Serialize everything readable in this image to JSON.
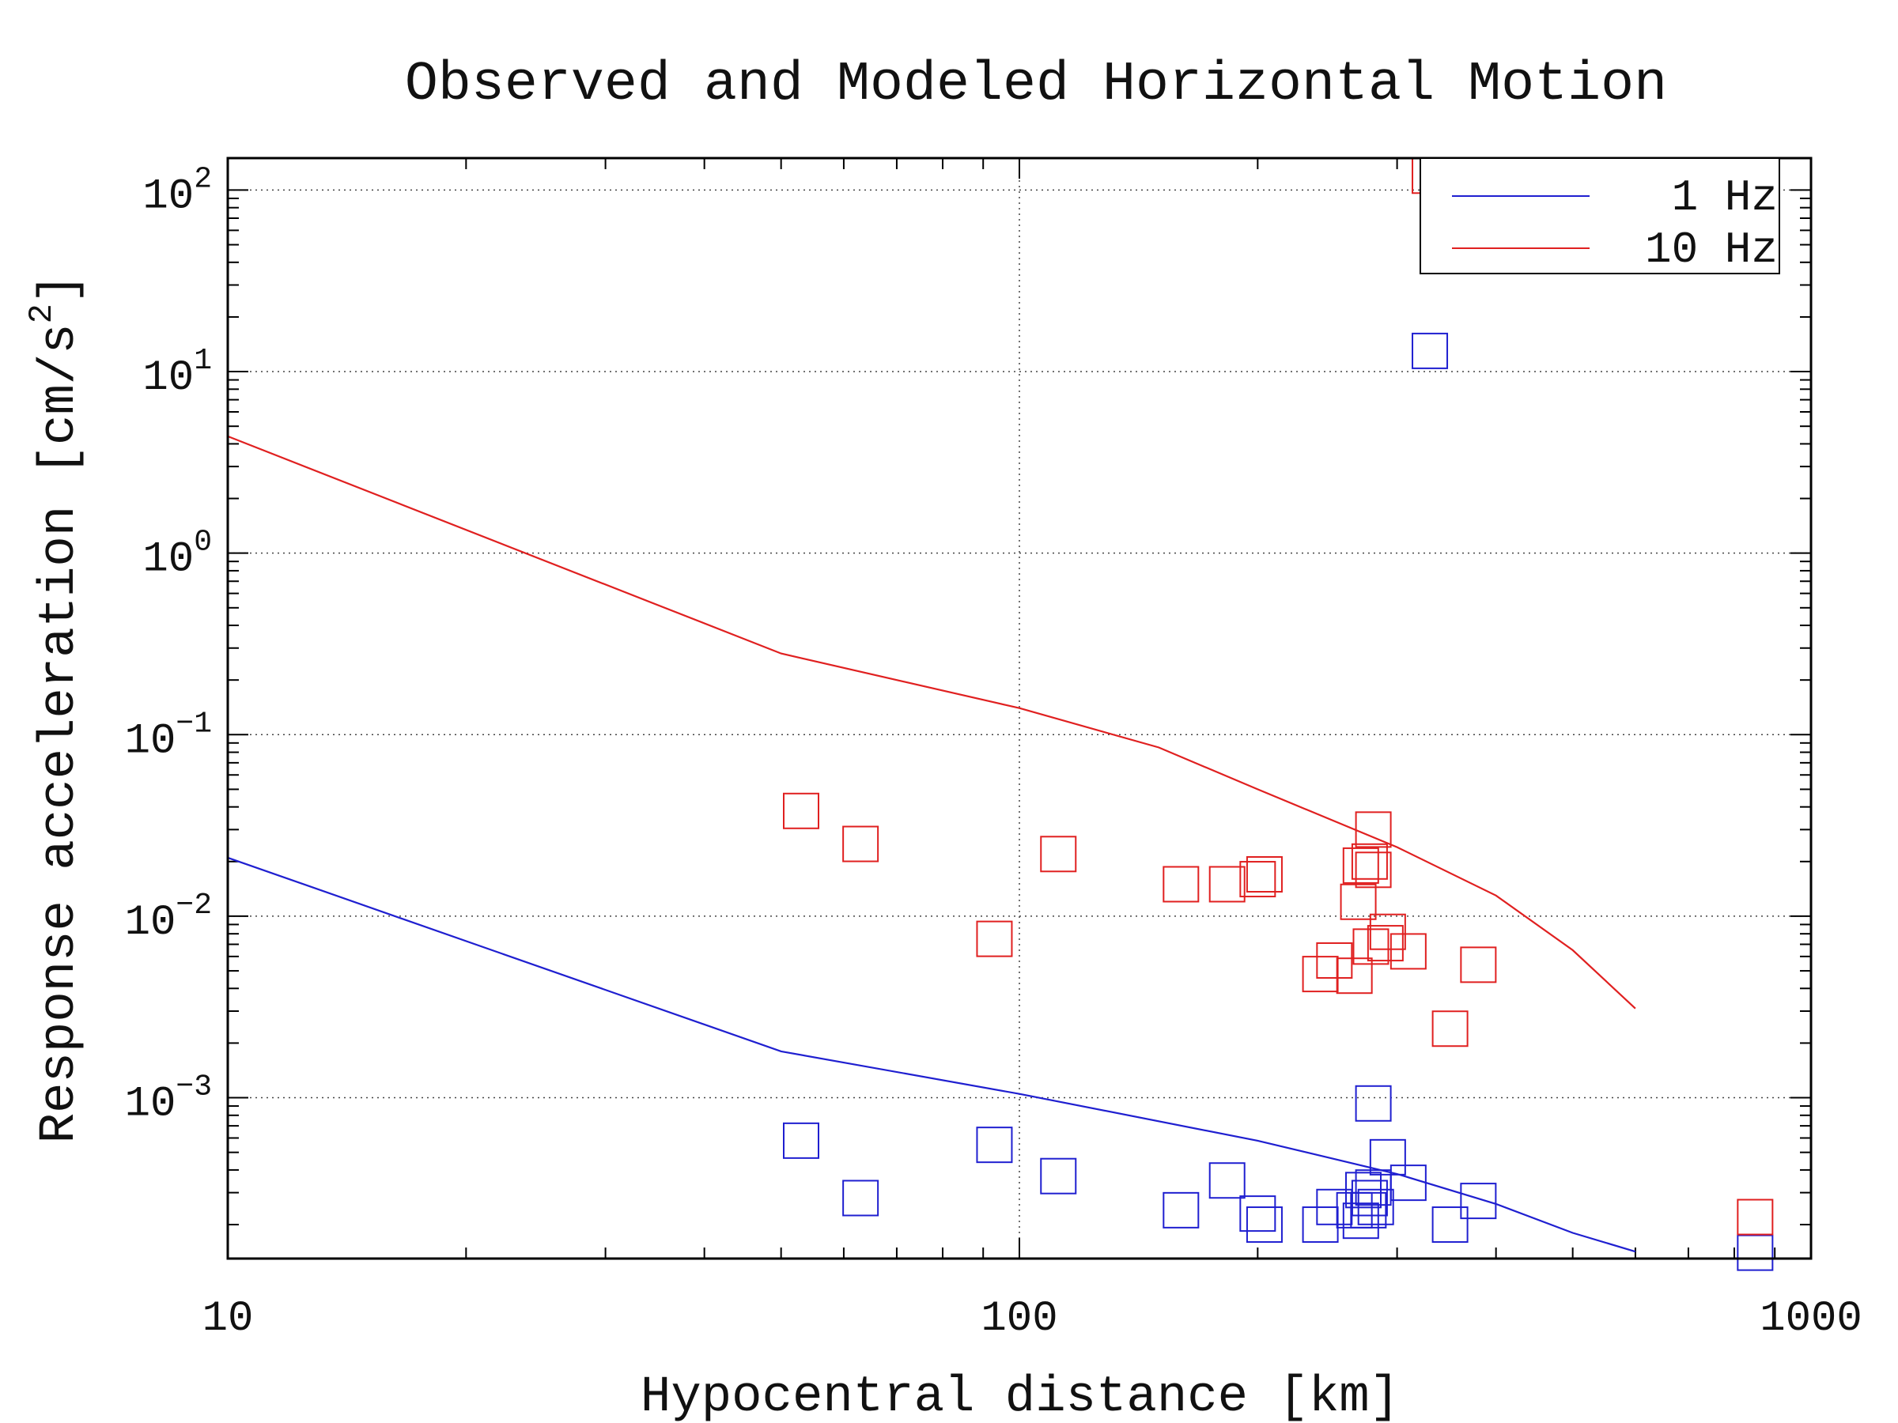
{
  "chart_data": {
    "type": "scatter",
    "title": "Observed and Modeled Horizontal Motion",
    "xlabel": "Hypocentral distance [km]",
    "ylabel": "Response acceleration [cm/s²]",
    "ylabel_main": "Response acceleration [cm/s",
    "ylabel_sup": "2",
    "ylabel_close": "]",
    "x_scale": "log",
    "y_scale": "log",
    "xlim": [
      10,
      1000
    ],
    "ylim": [
      0.00013,
      150
    ],
    "grid": true,
    "legend_position": "top-right",
    "x_ticks": [
      {
        "value": 10,
        "label": "10"
      },
      {
        "value": 100,
        "label": "100"
      },
      {
        "value": 1000,
        "label": "1000"
      }
    ],
    "y_ticks": [
      {
        "value": 100,
        "base": "10",
        "exp": "2"
      },
      {
        "value": 10,
        "base": "10",
        "exp": "1"
      },
      {
        "value": 1,
        "base": "10",
        "exp": "0"
      },
      {
        "value": 0.1,
        "base": "10",
        "exp": "−1"
      },
      {
        "value": 0.01,
        "base": "10",
        "exp": "−2"
      },
      {
        "value": 0.001,
        "base": "10",
        "exp": "−3"
      }
    ],
    "series": [
      {
        "name": "1 Hz",
        "color": "#1f1fd0",
        "kind": "line",
        "points": [
          [
            10,
            0.021
          ],
          [
            50,
            0.0018
          ],
          [
            100,
            0.00105
          ],
          [
            200,
            0.00058
          ],
          [
            300,
            0.00038
          ],
          [
            400,
            0.00026
          ],
          [
            500,
            0.00018
          ],
          [
            600,
            0.000142
          ]
        ]
      },
      {
        "name": "10 Hz",
        "color": "#e02020",
        "kind": "line",
        "points": [
          [
            10,
            4.4
          ],
          [
            50,
            0.28
          ],
          [
            100,
            0.14
          ],
          [
            150,
            0.085
          ],
          [
            200,
            0.05
          ],
          [
            300,
            0.024
          ],
          [
            400,
            0.013
          ],
          [
            500,
            0.0065
          ],
          [
            600,
            0.0031
          ]
        ]
      },
      {
        "name": "observed-1Hz",
        "color": "#1f1fd0",
        "kind": "markers",
        "points": [
          [
            53,
            0.00058
          ],
          [
            63,
            0.00028
          ],
          [
            93,
            0.00055
          ],
          [
            112,
            0.00037
          ],
          [
            160,
            0.00024
          ],
          [
            183,
            0.00035
          ],
          [
            200,
            0.00023
          ],
          [
            204,
            0.0002
          ],
          [
            240,
            0.0002
          ],
          [
            250,
            0.00025
          ],
          [
            265,
            0.00024
          ],
          [
            270,
            0.00021
          ],
          [
            272,
            0.00031
          ],
          [
            277,
            0.00028
          ],
          [
            282,
            0.00025
          ],
          [
            280,
            0.00032
          ],
          [
            276,
            0.00024
          ],
          [
            292,
            0.00047
          ],
          [
            310,
            0.00034
          ],
          [
            280,
            0.00093
          ],
          [
            350,
            0.0002
          ],
          [
            380,
            0.00027
          ],
          [
            330,
            13
          ],
          [
            850,
            0.00014
          ]
        ]
      },
      {
        "name": "observed-10Hz",
        "color": "#e02020",
        "kind": "markers",
        "points": [
          [
            53,
            0.038
          ],
          [
            63,
            0.025
          ],
          [
            93,
            0.0075
          ],
          [
            112,
            0.022
          ],
          [
            160,
            0.015
          ],
          [
            183,
            0.015
          ],
          [
            200,
            0.016
          ],
          [
            204,
            0.017
          ],
          [
            240,
            0.0048
          ],
          [
            250,
            0.0057
          ],
          [
            265,
            0.0047
          ],
          [
            268,
            0.012
          ],
          [
            270,
            0.019
          ],
          [
            277,
            0.02
          ],
          [
            280,
            0.018
          ],
          [
            280,
            0.03
          ],
          [
            278,
            0.0068
          ],
          [
            292,
            0.0082
          ],
          [
            290,
            0.0071
          ],
          [
            310,
            0.0064
          ],
          [
            350,
            0.0024
          ],
          [
            380,
            0.0054
          ],
          [
            330,
            120
          ],
          [
            850,
            0.00022
          ]
        ]
      }
    ],
    "legend": [
      {
        "label": "1 Hz",
        "color": "#1f1fd0"
      },
      {
        "label": "10 Hz",
        "color": "#e02020"
      }
    ]
  }
}
